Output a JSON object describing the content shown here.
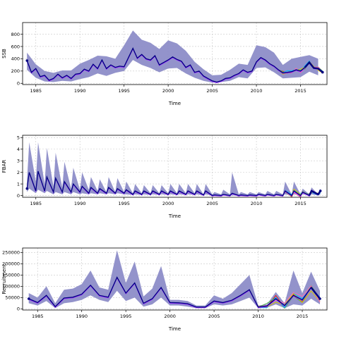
{
  "chart_data": [
    {
      "type": "line",
      "ylabel": "SSB",
      "xlabel": "Time",
      "xlim": [
        1983.5,
        2018.0
      ],
      "ylim": [
        -20,
        990
      ],
      "xticks": [
        1985,
        1990,
        1995,
        2000,
        2005,
        2010,
        2015
      ],
      "yticks": [
        0,
        200,
        400,
        600,
        800
      ],
      "grid": true,
      "colors": {
        "band": "#8d8dc8",
        "main": "#000080",
        "iters": [
          "#e41a1c",
          "#4daf4a",
          "#00b7ff",
          "#d6c200",
          "#ff69b4"
        ]
      },
      "band": {
        "x": [
          1984,
          1985,
          1986,
          1987,
          1988,
          1989,
          1990,
          1991,
          1992,
          1993,
          1994,
          1995,
          1996,
          1997,
          1998,
          1999,
          2000,
          2001,
          2002,
          2003,
          2004,
          2005,
          2006,
          2007,
          2008,
          2009,
          2010,
          2011,
          2012,
          2013,
          2014,
          2015,
          2016,
          2017
        ],
        "lower": [
          220,
          90,
          30,
          20,
          40,
          30,
          70,
          100,
          160,
          120,
          170,
          200,
          380,
          300,
          250,
          180,
          240,
          250,
          160,
          90,
          40,
          10,
          20,
          40,
          100,
          80,
          250,
          260,
          180,
          80,
          90,
          100,
          190,
          130
        ],
        "upper": [
          500,
          310,
          200,
          170,
          210,
          210,
          320,
          380,
          450,
          440,
          400,
          620,
          860,
          710,
          660,
          560,
          700,
          650,
          530,
          350,
          230,
          130,
          140,
          220,
          320,
          300,
          620,
          590,
          500,
          300,
          400,
          430,
          460,
          400
        ]
      },
      "series": [
        {
          "x": [
            1984,
            1984.5,
            1985,
            1985.5,
            1986,
            1986.5,
            1987,
            1987.5,
            1988,
            1988.5,
            1989,
            1989.5,
            1990,
            1990.5,
            1991,
            1991.5,
            1992,
            1992.5,
            1993,
            1993.5,
            1994,
            1994.5,
            1995,
            1995.5,
            1996,
            1996.5,
            1997,
            1997.5,
            1998,
            1998.5,
            1999,
            1999.5,
            2000,
            2000.5,
            2001,
            2001.5,
            2002,
            2002.5,
            2003,
            2003.5,
            2004,
            2004.5,
            2005,
            2005.5,
            2006,
            2006.5,
            2007,
            2007.5,
            2008,
            2008.5,
            2009,
            2009.5,
            2010,
            2010.5,
            2011,
            2011.5,
            2012,
            2012.5,
            2013,
            2013.5,
            2014,
            2014.5,
            2015,
            2015.5,
            2016,
            2016.5,
            2017,
            2017.5
          ],
          "values": [
            370,
            180,
            240,
            110,
            130,
            50,
            80,
            150,
            90,
            130,
            80,
            150,
            160,
            230,
            200,
            310,
            240,
            380,
            240,
            300,
            260,
            280,
            270,
            420,
            570,
            410,
            470,
            400,
            380,
            450,
            300,
            340,
            380,
            430,
            390,
            360,
            260,
            300,
            180,
            200,
            120,
            80,
            40,
            20,
            40,
            80,
            90,
            130,
            160,
            220,
            180,
            200,
            350,
            420,
            380,
            320,
            280,
            220,
            170,
            180,
            190,
            220,
            200,
            260,
            340,
            250,
            240,
            180
          ]
        }
      ]
    },
    {
      "type": "line",
      "ylabel": "FBAR",
      "xlabel": "Time",
      "xlim": [
        1983.5,
        2018.0
      ],
      "ylim": [
        -0.15,
        5.2
      ],
      "xticks": [
        1985,
        1990,
        1995,
        2000,
        2005,
        2010,
        2015
      ],
      "yticks": [
        0,
        1,
        2,
        3,
        4,
        5
      ],
      "grid": true,
      "colors": {
        "band": "#8d8dc8",
        "main": "#000080",
        "iters": [
          "#e41a1c",
          "#4daf4a",
          "#00b7ff",
          "#d6c200",
          "#ff69b4"
        ]
      },
      "band": {
        "x": [
          1984,
          1984.25,
          1985,
          1985.25,
          1986,
          1986.25,
          1987,
          1987.25,
          1988,
          1988.25,
          1989,
          1989.25,
          1990,
          1990.25,
          1991,
          1991.25,
          1992,
          1992.25,
          1993,
          1993.25,
          1994,
          1994.25,
          1995,
          1995.25,
          1996,
          1996.25,
          1997,
          1997.25,
          1998,
          1998.25,
          1999,
          1999.25,
          2000,
          2000.25,
          2001,
          2001.25,
          2002,
          2002.25,
          2003,
          2003.25,
          2004,
          2004.25,
          2005,
          2005.25,
          2006,
          2006.25,
          2007,
          2007.25,
          2008,
          2008.25,
          2009,
          2009.25,
          2010,
          2010.25,
          2011,
          2011.25,
          2012,
          2012.25,
          2013,
          2013.25,
          2014,
          2014.25,
          2015,
          2015.25,
          2016,
          2016.25,
          2017,
          2017.25
        ],
        "lower": [
          0.3,
          0.6,
          0.2,
          0.5,
          0.2,
          0.4,
          0.1,
          0.3,
          0.1,
          0.3,
          0.1,
          0.3,
          0.1,
          0.2,
          0.1,
          0.2,
          0.1,
          0.2,
          0.1,
          0.2,
          0.1,
          0.2,
          0.1,
          0.1,
          0.05,
          0.1,
          0.05,
          0.1,
          0.05,
          0.1,
          0.05,
          0.1,
          0.05,
          0.1,
          0.05,
          0.1,
          0.05,
          0.1,
          0.05,
          0.1,
          0.0,
          0.1,
          0.0,
          0.0,
          0.0,
          0.0,
          0.0,
          0.0,
          0.0,
          0.0,
          0.0,
          0.0,
          0.0,
          0.0,
          0.0,
          0.0,
          0.0,
          0.0,
          0.0,
          0.1,
          0.0,
          0.1,
          0.0,
          0.1,
          0.0,
          0.1,
          0.0,
          0.1
        ],
        "upper": [
          1.3,
          4.6,
          1.2,
          4.6,
          1.0,
          4.1,
          0.8,
          3.7,
          0.7,
          2.9,
          0.6,
          2.4,
          0.5,
          2.0,
          0.5,
          1.6,
          0.4,
          1.4,
          0.3,
          1.6,
          0.3,
          1.5,
          0.3,
          1.2,
          0.2,
          1.0,
          0.2,
          0.9,
          0.2,
          0.9,
          0.2,
          0.9,
          0.2,
          1.0,
          0.2,
          1.0,
          0.2,
          1.0,
          0.2,
          1.0,
          0.1,
          1.0,
          0.1,
          0.3,
          0.1,
          0.5,
          0.1,
          2.0,
          0.1,
          0.3,
          0.1,
          0.3,
          0.1,
          0.3,
          0.1,
          0.4,
          0.1,
          0.4,
          0.1,
          1.2,
          0.1,
          1.2,
          0.1,
          0.6,
          0.1,
          0.7,
          0.1,
          0.6
        ]
      },
      "series": [
        {
          "x": [
            1984,
            1984.25,
            1985,
            1985.25,
            1986,
            1986.25,
            1987,
            1987.25,
            1988,
            1988.25,
            1989,
            1989.25,
            1990,
            1990.25,
            1991,
            1991.25,
            1992,
            1992.25,
            1993,
            1993.25,
            1994,
            1994.25,
            1995,
            1995.25,
            1996,
            1996.25,
            1997,
            1997.25,
            1998,
            1998.25,
            1999,
            1999.25,
            2000,
            2000.25,
            2001,
            2001.25,
            2002,
            2002.25,
            2003,
            2003.25,
            2004,
            2004.25,
            2005,
            2005.25,
            2006,
            2006.25,
            2007,
            2007.25,
            2008,
            2008.25,
            2009,
            2009.25,
            2010,
            2010.25,
            2011,
            2011.25,
            2012,
            2012.25,
            2013,
            2013.25,
            2014,
            2014.25,
            2015,
            2015.25,
            2016,
            2016.25,
            2017,
            2017.25
          ],
          "values": [
            0.6,
            2.0,
            0.4,
            2.1,
            0.4,
            1.6,
            0.3,
            1.5,
            0.3,
            1.2,
            0.3,
            1.0,
            0.3,
            0.8,
            0.2,
            0.7,
            0.2,
            0.6,
            0.2,
            0.7,
            0.2,
            0.6,
            0.2,
            0.5,
            0.1,
            0.4,
            0.1,
            0.4,
            0.1,
            0.4,
            0.1,
            0.4,
            0.1,
            0.4,
            0.1,
            0.4,
            0.1,
            0.4,
            0.1,
            0.4,
            0.05,
            0.4,
            0.0,
            0.05,
            0.0,
            0.1,
            0.0,
            0.2,
            0.0,
            0.05,
            0.0,
            0.05,
            0.0,
            0.1,
            0.0,
            0.1,
            0.0,
            0.1,
            0.0,
            0.4,
            0.0,
            0.4,
            0.0,
            0.3,
            0.0,
            0.4,
            0.1,
            0.4
          ]
        }
      ]
    },
    {
      "type": "line",
      "ylabel": "Recruitment",
      "xlabel": "Time",
      "xlim": [
        1983.3,
        2017.8
      ],
      "ylim": [
        -5000,
        270000
      ],
      "xticks": [
        1985,
        1990,
        1995,
        2000,
        2005,
        2010,
        2015
      ],
      "yticks": [
        0,
        50000,
        100000,
        150000,
        200000,
        250000
      ],
      "grid": true,
      "colors": {
        "band": "#8d8dc8",
        "main": "#000080",
        "iters": [
          "#e41a1c",
          "#4daf4a",
          "#00b7ff",
          "#d6c200",
          "#ff69b4"
        ]
      },
      "band": {
        "x": [
          1984,
          1985,
          1986,
          1987,
          1988,
          1989,
          1990,
          1991,
          1992,
          1993,
          1994,
          1995,
          1996,
          1997,
          1998,
          1999,
          2000,
          2001,
          2002,
          2003,
          2004,
          2005,
          2006,
          2007,
          2008,
          2009,
          2010,
          2011,
          2012,
          2013,
          2014,
          2015,
          2016,
          2017
        ],
        "lower": [
          25000,
          15000,
          35000,
          3000,
          25000,
          30000,
          40000,
          60000,
          40000,
          30000,
          80000,
          35000,
          50000,
          10000,
          20000,
          50000,
          15000,
          15000,
          10000,
          3000,
          3000,
          20000,
          15000,
          20000,
          35000,
          50000,
          3000,
          5000,
          20000,
          3000,
          20000,
          15000,
          45000,
          20000
        ],
        "upper": [
          70000,
          50000,
          100000,
          25000,
          85000,
          90000,
          110000,
          170000,
          95000,
          85000,
          260000,
          115000,
          210000,
          55000,
          90000,
          190000,
          40000,
          40000,
          35000,
          15000,
          15000,
          60000,
          45000,
          70000,
          110000,
          150000,
          15000,
          20000,
          75000,
          25000,
          170000,
          70000,
          165000,
          80000
        ]
      },
      "series": [
        {
          "x": [
            1984,
            1985,
            1986,
            1987,
            1988,
            1989,
            1990,
            1991,
            1992,
            1993,
            1994,
            1995,
            1996,
            1997,
            1998,
            1999,
            2000,
            2001,
            2002,
            2003,
            2004,
            2005,
            2006,
            2007,
            2008,
            2009,
            2010,
            2011,
            2012,
            2013,
            2014,
            2015,
            2016,
            2017
          ],
          "values": [
            45000,
            28000,
            60000,
            10000,
            48000,
            52000,
            65000,
            105000,
            60000,
            52000,
            140000,
            70000,
            115000,
            25000,
            45000,
            95000,
            28000,
            27000,
            23000,
            8000,
            8000,
            35000,
            28000,
            38000,
            60000,
            85000,
            8000,
            13000,
            45000,
            15000,
            60000,
            40000,
            95000,
            45000
          ]
        }
      ]
    }
  ],
  "panels": [
    {
      "ylabel": "SSB",
      "xlabel": "Time",
      "ytick_labels": [
        "0",
        "200",
        "400",
        "600",
        "800"
      ],
      "xtick_labels": [
        "1985",
        "1990",
        "1995",
        "2000",
        "2005",
        "2010",
        "2015"
      ]
    },
    {
      "ylabel": "FBAR",
      "xlabel": "Time",
      "ytick_labels": [
        "0",
        "1",
        "2",
        "3",
        "4",
        "5"
      ],
      "xtick_labels": [
        "1985",
        "1990",
        "1995",
        "2000",
        "2005",
        "2010",
        "2015"
      ]
    },
    {
      "ylabel": "Recruitment",
      "xlabel": "Time",
      "ytick_labels": [
        "0",
        "50000",
        "100000",
        "150000",
        "200000",
        "250000"
      ],
      "xtick_labels": [
        "1985",
        "1990",
        "1995",
        "2000",
        "2005",
        "2010",
        "2015"
      ]
    }
  ]
}
